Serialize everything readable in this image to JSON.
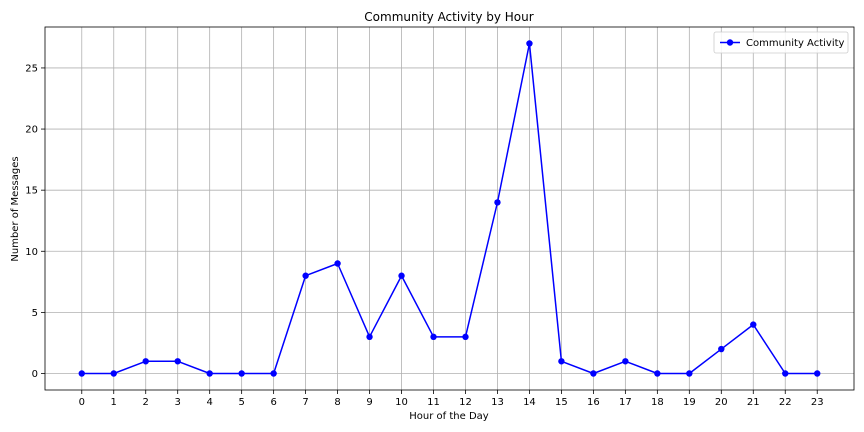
{
  "chart_data": {
    "type": "line",
    "title": "Community Activity by Hour",
    "xlabel": "Hour of the Day",
    "ylabel": "Number of Messages",
    "x": [
      0,
      1,
      2,
      3,
      4,
      5,
      6,
      7,
      8,
      9,
      10,
      11,
      12,
      13,
      14,
      15,
      16,
      17,
      18,
      19,
      20,
      21,
      22,
      23
    ],
    "series": [
      {
        "name": "Community Activity",
        "values": [
          0,
          0,
          1,
          1,
          0,
          0,
          0,
          8,
          9,
          3,
          8,
          3,
          3,
          14,
          27,
          1,
          0,
          1,
          0,
          0,
          2,
          4,
          0,
          0
        ],
        "color": "#0000ff",
        "marker": "circle"
      }
    ],
    "xticks": [
      0,
      1,
      2,
      3,
      4,
      5,
      6,
      7,
      8,
      9,
      10,
      11,
      12,
      13,
      14,
      15,
      16,
      17,
      18,
      19,
      20,
      21,
      22,
      23
    ],
    "yticks": [
      0,
      5,
      10,
      15,
      20,
      25
    ],
    "xlim": [
      -1.15,
      24.15
    ],
    "ylim": [
      -1.35,
      28.35
    ],
    "grid": true,
    "legend_position": "upper right"
  }
}
